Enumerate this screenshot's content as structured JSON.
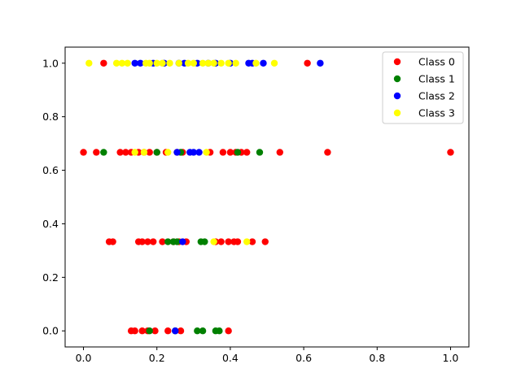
{
  "chart_data": {
    "type": "scatter",
    "title": "",
    "xlabel": "",
    "ylabel": "",
    "xlim": [
      -0.05,
      1.05
    ],
    "ylim": [
      -0.06,
      1.06
    ],
    "xticks": [
      0.0,
      0.2,
      0.4,
      0.6,
      0.8,
      1.0
    ],
    "xtick_labels": [
      "0.0",
      "0.2",
      "0.4",
      "0.6",
      "0.8",
      "1.0"
    ],
    "yticks": [
      0.0,
      0.2,
      0.4,
      0.6,
      0.8,
      1.0
    ],
    "ytick_labels": [
      "0.0",
      "0.2",
      "0.4",
      "0.6",
      "0.8",
      "1.0"
    ],
    "grid": false,
    "legend_position": "top-right",
    "series": [
      {
        "name": "Class 0",
        "color": "#ff0000",
        "points": [
          [
            0.055,
            1.0
          ],
          [
            0.61,
            1.0
          ],
          [
            0.0,
            0.667
          ],
          [
            0.035,
            0.667
          ],
          [
            0.1,
            0.667
          ],
          [
            0.115,
            0.667
          ],
          [
            0.13,
            0.667
          ],
          [
            0.15,
            0.667
          ],
          [
            0.165,
            0.667
          ],
          [
            0.18,
            0.667
          ],
          [
            0.2,
            0.667
          ],
          [
            0.225,
            0.667
          ],
          [
            0.255,
            0.667
          ],
          [
            0.27,
            0.667
          ],
          [
            0.345,
            0.667
          ],
          [
            0.38,
            0.667
          ],
          [
            0.4,
            0.667
          ],
          [
            0.415,
            0.667
          ],
          [
            0.43,
            0.667
          ],
          [
            0.445,
            0.667
          ],
          [
            0.535,
            0.667
          ],
          [
            0.665,
            0.667
          ],
          [
            1.0,
            0.667
          ],
          [
            0.07,
            0.333
          ],
          [
            0.08,
            0.333
          ],
          [
            0.15,
            0.333
          ],
          [
            0.16,
            0.333
          ],
          [
            0.175,
            0.333
          ],
          [
            0.19,
            0.333
          ],
          [
            0.215,
            0.333
          ],
          [
            0.245,
            0.333
          ],
          [
            0.26,
            0.333
          ],
          [
            0.28,
            0.333
          ],
          [
            0.36,
            0.333
          ],
          [
            0.375,
            0.333
          ],
          [
            0.395,
            0.333
          ],
          [
            0.41,
            0.333
          ],
          [
            0.42,
            0.333
          ],
          [
            0.46,
            0.333
          ],
          [
            0.495,
            0.333
          ],
          [
            0.13,
            0.0
          ],
          [
            0.14,
            0.0
          ],
          [
            0.16,
            0.0
          ],
          [
            0.175,
            0.0
          ],
          [
            0.195,
            0.0
          ],
          [
            0.23,
            0.0
          ],
          [
            0.265,
            0.0
          ],
          [
            0.395,
            0.0
          ]
        ]
      },
      {
        "name": "Class 1",
        "color": "#008000",
        "points": [
          [
            0.055,
            0.667
          ],
          [
            0.2,
            0.667
          ],
          [
            0.265,
            0.667
          ],
          [
            0.42,
            0.667
          ],
          [
            0.48,
            0.667
          ],
          [
            0.23,
            0.333
          ],
          [
            0.245,
            0.333
          ],
          [
            0.255,
            0.333
          ],
          [
            0.32,
            0.333
          ],
          [
            0.33,
            0.333
          ],
          [
            0.18,
            0.0
          ],
          [
            0.25,
            0.0
          ],
          [
            0.31,
            0.0
          ],
          [
            0.325,
            0.0
          ],
          [
            0.36,
            0.0
          ],
          [
            0.37,
            0.0
          ]
        ]
      },
      {
        "name": "Class 2",
        "color": "#0000ff",
        "points": [
          [
            0.14,
            1.0
          ],
          [
            0.155,
            1.0
          ],
          [
            0.19,
            1.0
          ],
          [
            0.22,
            1.0
          ],
          [
            0.26,
            1.0
          ],
          [
            0.275,
            1.0
          ],
          [
            0.31,
            1.0
          ],
          [
            0.34,
            1.0
          ],
          [
            0.36,
            1.0
          ],
          [
            0.4,
            1.0
          ],
          [
            0.45,
            1.0
          ],
          [
            0.46,
            1.0
          ],
          [
            0.49,
            1.0
          ],
          [
            0.645,
            1.0
          ],
          [
            0.255,
            0.667
          ],
          [
            0.29,
            0.667
          ],
          [
            0.3,
            0.667
          ],
          [
            0.315,
            0.667
          ],
          [
            0.27,
            0.333
          ],
          [
            0.25,
            0.0
          ]
        ]
      },
      {
        "name": "Class 3",
        "color": "#ffff00",
        "points": [
          [
            0.015,
            1.0
          ],
          [
            0.09,
            1.0
          ],
          [
            0.105,
            1.0
          ],
          [
            0.12,
            1.0
          ],
          [
            0.17,
            1.0
          ],
          [
            0.18,
            1.0
          ],
          [
            0.2,
            1.0
          ],
          [
            0.215,
            1.0
          ],
          [
            0.235,
            1.0
          ],
          [
            0.26,
            1.0
          ],
          [
            0.285,
            1.0
          ],
          [
            0.3,
            1.0
          ],
          [
            0.325,
            1.0
          ],
          [
            0.34,
            1.0
          ],
          [
            0.355,
            1.0
          ],
          [
            0.375,
            1.0
          ],
          [
            0.395,
            1.0
          ],
          [
            0.415,
            1.0
          ],
          [
            0.47,
            1.0
          ],
          [
            0.52,
            1.0
          ],
          [
            0.14,
            0.667
          ],
          [
            0.165,
            0.667
          ],
          [
            0.23,
            0.667
          ],
          [
            0.335,
            0.667
          ],
          [
            0.355,
            0.333
          ],
          [
            0.445,
            0.333
          ]
        ]
      }
    ]
  }
}
